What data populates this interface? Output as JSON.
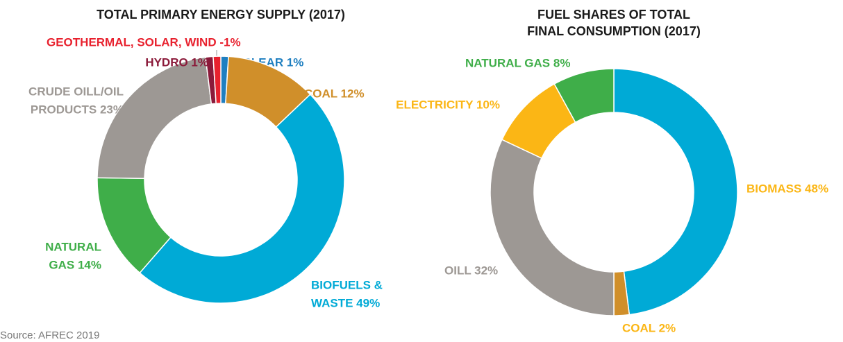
{
  "chart_data": [
    {
      "type": "pie",
      "donut": true,
      "title": [
        "TOTAL PRIMARY ENERGY SUPPLY (2017)"
      ],
      "labels": [
        [
          "NUCLEAR 1%"
        ],
        [
          "COAL 12%"
        ],
        [
          "BIOFUELS &",
          "WASTE 49%"
        ],
        [
          "NATURAL",
          "GAS 14%"
        ],
        [
          "CRUDE OILL/OIL",
          "PRODUCTS 23%"
        ],
        [
          "HYDRO 1%"
        ],
        [
          "GEOTHERMAL, SOLAR, WIND  -1%"
        ]
      ],
      "values": [
        1,
        12,
        49,
        14,
        23,
        1,
        1
      ],
      "colors": [
        "#1f7fc0",
        "#d08f2a",
        "#00aad6",
        "#3fae49",
        "#9d9894",
        "#8b1a3a",
        "#e8212e"
      ],
      "label_colors": [
        "#1f7fc0",
        "#d08f2a",
        "#00aad6",
        "#3fae49",
        "#9d9894",
        "#8b1a3a",
        "#e8212e"
      ]
    },
    {
      "type": "pie",
      "donut": true,
      "title": [
        "FUEL SHARES OF TOTAL",
        "FINAL CONSUMPTION (2017)"
      ],
      "labels": [
        [
          "BIOMASS 48%"
        ],
        [
          "COAL 2%"
        ],
        [
          "OILL 32%"
        ],
        [
          "ELECTRICITY 10%"
        ],
        [
          "NATURAL GAS 8%"
        ]
      ],
      "values": [
        48,
        2,
        32,
        10,
        8
      ],
      "colors": [
        "#00aad6",
        "#d08f2a",
        "#9d9894",
        "#fbb615",
        "#3fae49"
      ],
      "label_colors": [
        "#fbb615",
        "#fbb615",
        "#9d9894",
        "#fbb615",
        "#3fae49"
      ]
    }
  ],
  "source": "Source: AFREC 2019"
}
